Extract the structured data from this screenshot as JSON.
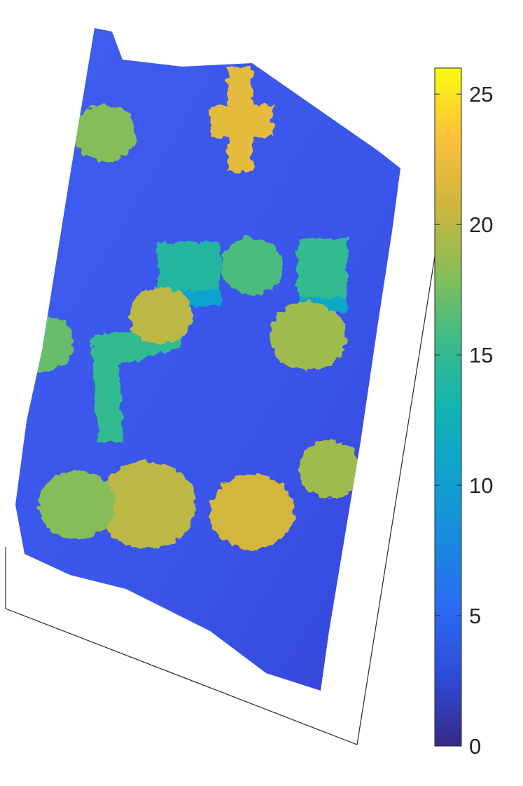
{
  "chart_data": {
    "type": "heatmap",
    "view": "3d-surface",
    "colormap": "parula",
    "colorbar": {
      "location": "right",
      "range": [
        0,
        26
      ],
      "ticks": [
        0,
        5,
        10,
        15,
        20,
        25
      ],
      "tick_labels": [
        "0",
        "5",
        "10",
        "15",
        "20",
        "25"
      ]
    },
    "grid": false,
    "features": [
      {
        "kind": "building",
        "height": 22
      },
      {
        "kind": "building",
        "height": 15
      },
      {
        "kind": "building",
        "height": 15
      },
      {
        "kind": "building",
        "height": 14
      },
      {
        "kind": "trees",
        "height": 17
      },
      {
        "kind": "trees",
        "height": 20
      },
      {
        "kind": "trees",
        "height": 19
      },
      {
        "kind": "trees",
        "height": 18
      },
      {
        "kind": "trees",
        "height": 20
      },
      {
        "kind": "trees",
        "height": 21
      },
      {
        "kind": "trees",
        "height": 19
      },
      {
        "kind": "trees",
        "height": 18
      },
      {
        "kind": "trees",
        "height": 16
      }
    ]
  }
}
